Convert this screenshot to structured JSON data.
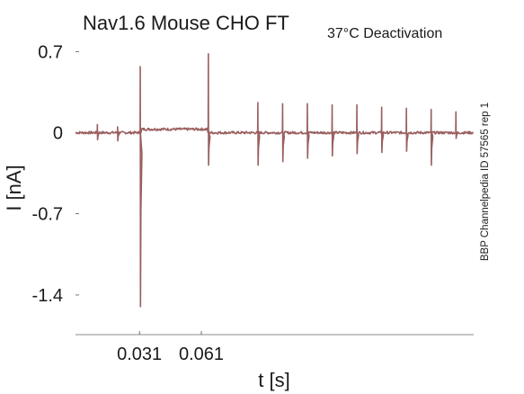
{
  "chart_data": {
    "type": "line",
    "title": "Nav1.6  Mouse  CHO FT",
    "subtitle": "37°C  Deactivation",
    "xlabel": "t [s]",
    "ylabel": "I [nA]",
    "source_note": "BBP Channelpedia ID 57565 rep 1",
    "xlim": [
      0.0,
      0.193
    ],
    "ylim": [
      -1.73,
      0.9
    ],
    "x_ticks": [
      {
        "value": 0.031,
        "label": "0.031"
      },
      {
        "value": 0.061,
        "label": "0.061"
      }
    ],
    "y_ticks": [
      {
        "value": 0.7,
        "label": "0.7"
      },
      {
        "value": 0,
        "label": "0"
      },
      {
        "value": -0.7,
        "label": "-0.7"
      },
      {
        "value": -1.4,
        "label": "-1.4"
      }
    ],
    "grid": false,
    "series": [
      {
        "color": "#9a5f5f",
        "baseline": 0.0,
        "events": [
          {
            "t": 0.0107,
            "up": 0.07,
            "down": -0.06
          },
          {
            "t": 0.0205,
            "up": 0.05,
            "down": -0.07
          },
          {
            "t": 0.0315,
            "up": 0.57,
            "down": -1.5
          },
          {
            "t": 0.0645,
            "up": 0.68,
            "down": -0.28
          },
          {
            "t": 0.0885,
            "up": 0.26,
            "down": -0.28
          },
          {
            "t": 0.1005,
            "up": 0.25,
            "down": -0.25
          },
          {
            "t": 0.1125,
            "up": 0.25,
            "down": -0.22
          },
          {
            "t": 0.1245,
            "up": 0.24,
            "down": -0.2
          },
          {
            "t": 0.1365,
            "up": 0.24,
            "down": -0.18
          },
          {
            "t": 0.1485,
            "up": 0.22,
            "down": -0.17
          },
          {
            "t": 0.1605,
            "up": 0.21,
            "down": -0.16
          },
          {
            "t": 0.1725,
            "up": 0.2,
            "down": -0.28
          },
          {
            "t": 0.1845,
            "up": 0.18,
            "down": -0.05
          }
        ],
        "plateau": {
          "start": 0.032,
          "end": 0.064,
          "level": 0.03
        }
      }
    ]
  }
}
